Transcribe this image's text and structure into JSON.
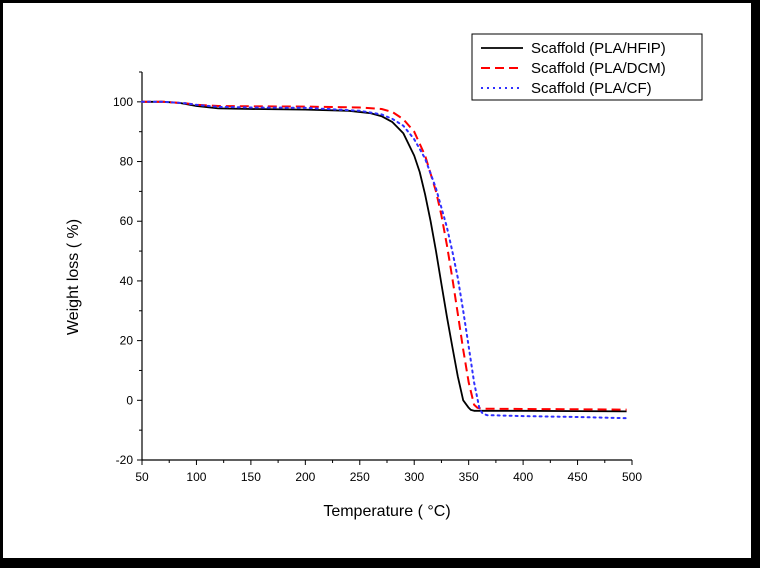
{
  "chart_data": {
    "type": "line",
    "xlabel": "Temperature ( °C)",
    "ylabel": "Weight loss ( %)",
    "xlim": [
      50,
      500
    ],
    "ylim": [
      -20,
      110
    ],
    "xticks": [
      50,
      100,
      150,
      200,
      250,
      300,
      350,
      400,
      450,
      500
    ],
    "yticks": [
      -20,
      0,
      20,
      40,
      60,
      80,
      100
    ],
    "grid": false,
    "legend_position": "top-right",
    "series": [
      {
        "name": "Scaffold (PLA/HFIP)",
        "color": "#000000",
        "style": "solid",
        "x": [
          50,
          70,
          85,
          100,
          120,
          150,
          200,
          240,
          260,
          270,
          280,
          290,
          300,
          305,
          310,
          315,
          320,
          325,
          330,
          335,
          340,
          345,
          350,
          352,
          355,
          360,
          400,
          450,
          495
        ],
        "y": [
          100,
          100,
          99.6,
          98.6,
          97.8,
          97.6,
          97.4,
          97.0,
          96.2,
          95.2,
          93.2,
          89.5,
          82,
          76.5,
          69,
          60,
          50,
          39,
          28,
          18,
          8,
          0,
          -2.5,
          -3.2,
          -3.5,
          -3.5,
          -3.5,
          -3.6,
          -3.7
        ]
      },
      {
        "name": "Scaffold (PLA/DCM)",
        "color": "#ff0000",
        "style": "dashed",
        "x": [
          50,
          70,
          90,
          100,
          120,
          150,
          200,
          250,
          270,
          280,
          290,
          300,
          310,
          320,
          325,
          330,
          335,
          340,
          345,
          350,
          355,
          358,
          362,
          365,
          400,
          450,
          495
        ],
        "y": [
          100,
          100,
          99.5,
          99.0,
          98.6,
          98.5,
          98.4,
          98.1,
          97.6,
          96.6,
          94.2,
          90,
          82,
          70,
          62,
          52,
          41,
          29,
          17,
          6,
          -1.5,
          -2.5,
          -2.8,
          -2.8,
          -2.9,
          -3.0,
          -3.1
        ]
      },
      {
        "name": "Scaffold (PLA/CF)",
        "color": "#2f2fff",
        "style": "dotted",
        "x": [
          50,
          70,
          90,
          100,
          120,
          150,
          200,
          250,
          270,
          280,
          290,
          300,
          310,
          320,
          330,
          335,
          340,
          345,
          350,
          355,
          360,
          363,
          367,
          370,
          400,
          450,
          495
        ],
        "y": [
          100,
          100,
          99.5,
          99.0,
          98.3,
          98.1,
          98.0,
          97.0,
          95.8,
          94.3,
          92,
          87.5,
          81,
          71,
          58,
          50,
          41,
          30,
          18,
          6,
          -3,
          -4.5,
          -5,
          -5,
          -5.3,
          -5.6,
          -6
        ]
      }
    ]
  }
}
